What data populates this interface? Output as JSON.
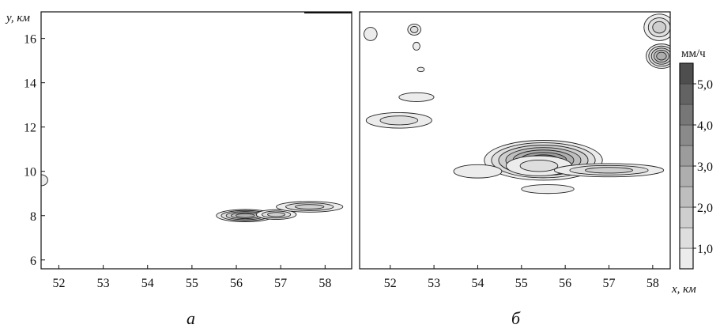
{
  "chart_data": [
    {
      "type": "contour",
      "caption": "а",
      "xlabel": "",
      "ylabel": "y, км",
      "xlim": [
        51.6,
        58.6
      ],
      "ylim": [
        5.6,
        17.2
      ],
      "xticks": [
        52,
        53,
        54,
        55,
        56,
        57,
        58
      ],
      "yticks": [
        6,
        8,
        10,
        12,
        14,
        16
      ],
      "features": [
        {
          "cx": 56.2,
          "cy": 8.0,
          "rx": 0.65,
          "ry": 0.28,
          "levels": 5
        },
        {
          "cx": 56.9,
          "cy": 8.05,
          "rx": 0.45,
          "ry": 0.22,
          "levels": 3
        },
        {
          "cx": 57.65,
          "cy": 8.4,
          "rx": 0.75,
          "ry": 0.24,
          "levels": 3
        },
        {
          "cx": 51.6,
          "cy": 9.6,
          "rx": 0.15,
          "ry": 0.25,
          "levels": 1
        }
      ]
    },
    {
      "type": "contour",
      "caption": "б",
      "xlabel": "x, км",
      "ylabel": "",
      "xlim": [
        51.3,
        58.4
      ],
      "ylim": [
        5.6,
        17.2
      ],
      "xticks": [
        52,
        53,
        54,
        55,
        56,
        57,
        58
      ],
      "features": [
        {
          "cx": 55.5,
          "cy": 10.5,
          "rx": 1.35,
          "ry": 0.9,
          "levels": 7
        },
        {
          "cx": 55.4,
          "cy": 10.25,
          "rx": 0.75,
          "ry": 0.45,
          "levels": 2
        },
        {
          "cx": 57.0,
          "cy": 10.05,
          "rx": 1.25,
          "ry": 0.3,
          "levels": 3
        },
        {
          "cx": 54.0,
          "cy": 10.0,
          "rx": 0.55,
          "ry": 0.3,
          "levels": 1
        },
        {
          "cx": 55.6,
          "cy": 9.2,
          "rx": 0.6,
          "ry": 0.2,
          "levels": 1
        },
        {
          "cx": 58.2,
          "cy": 15.2,
          "rx": 0.35,
          "ry": 0.55,
          "levels": 5
        },
        {
          "cx": 58.15,
          "cy": 16.5,
          "rx": 0.35,
          "ry": 0.6,
          "levels": 3
        },
        {
          "cx": 52.2,
          "cy": 12.3,
          "rx": 0.75,
          "ry": 0.35,
          "levels": 2
        },
        {
          "cx": 52.6,
          "cy": 13.35,
          "rx": 0.4,
          "ry": 0.2,
          "levels": 1
        },
        {
          "cx": 51.55,
          "cy": 16.2,
          "rx": 0.15,
          "ry": 0.3,
          "levels": 1
        },
        {
          "cx": 52.55,
          "cy": 16.4,
          "rx": 0.15,
          "ry": 0.25,
          "levels": 2
        },
        {
          "cx": 52.6,
          "cy": 15.65,
          "rx": 0.08,
          "ry": 0.18,
          "levels": 1
        },
        {
          "cx": 52.7,
          "cy": 14.6,
          "rx": 0.08,
          "ry": 0.1,
          "levels": 1
        }
      ]
    }
  ],
  "colorbar": {
    "unit": "мм/ч",
    "range": [
      0.5,
      5.5
    ],
    "levels": [
      0.5,
      1.0,
      1.5,
      2.0,
      2.5,
      3.0,
      3.5,
      4.0,
      4.5,
      5.0,
      5.5
    ],
    "tick_labels": [
      "1,0",
      "2,0",
      "3,0",
      "4,0",
      "5,0"
    ],
    "tick_values": [
      1.0,
      2.0,
      3.0,
      4.0,
      5.0
    ],
    "colors": [
      "#ececec",
      "#dedede",
      "#cecece",
      "#bebebe",
      "#aeaeae",
      "#9c9c9c",
      "#8a8a8a",
      "#777777",
      "#636363",
      "#4e4e4e"
    ]
  }
}
